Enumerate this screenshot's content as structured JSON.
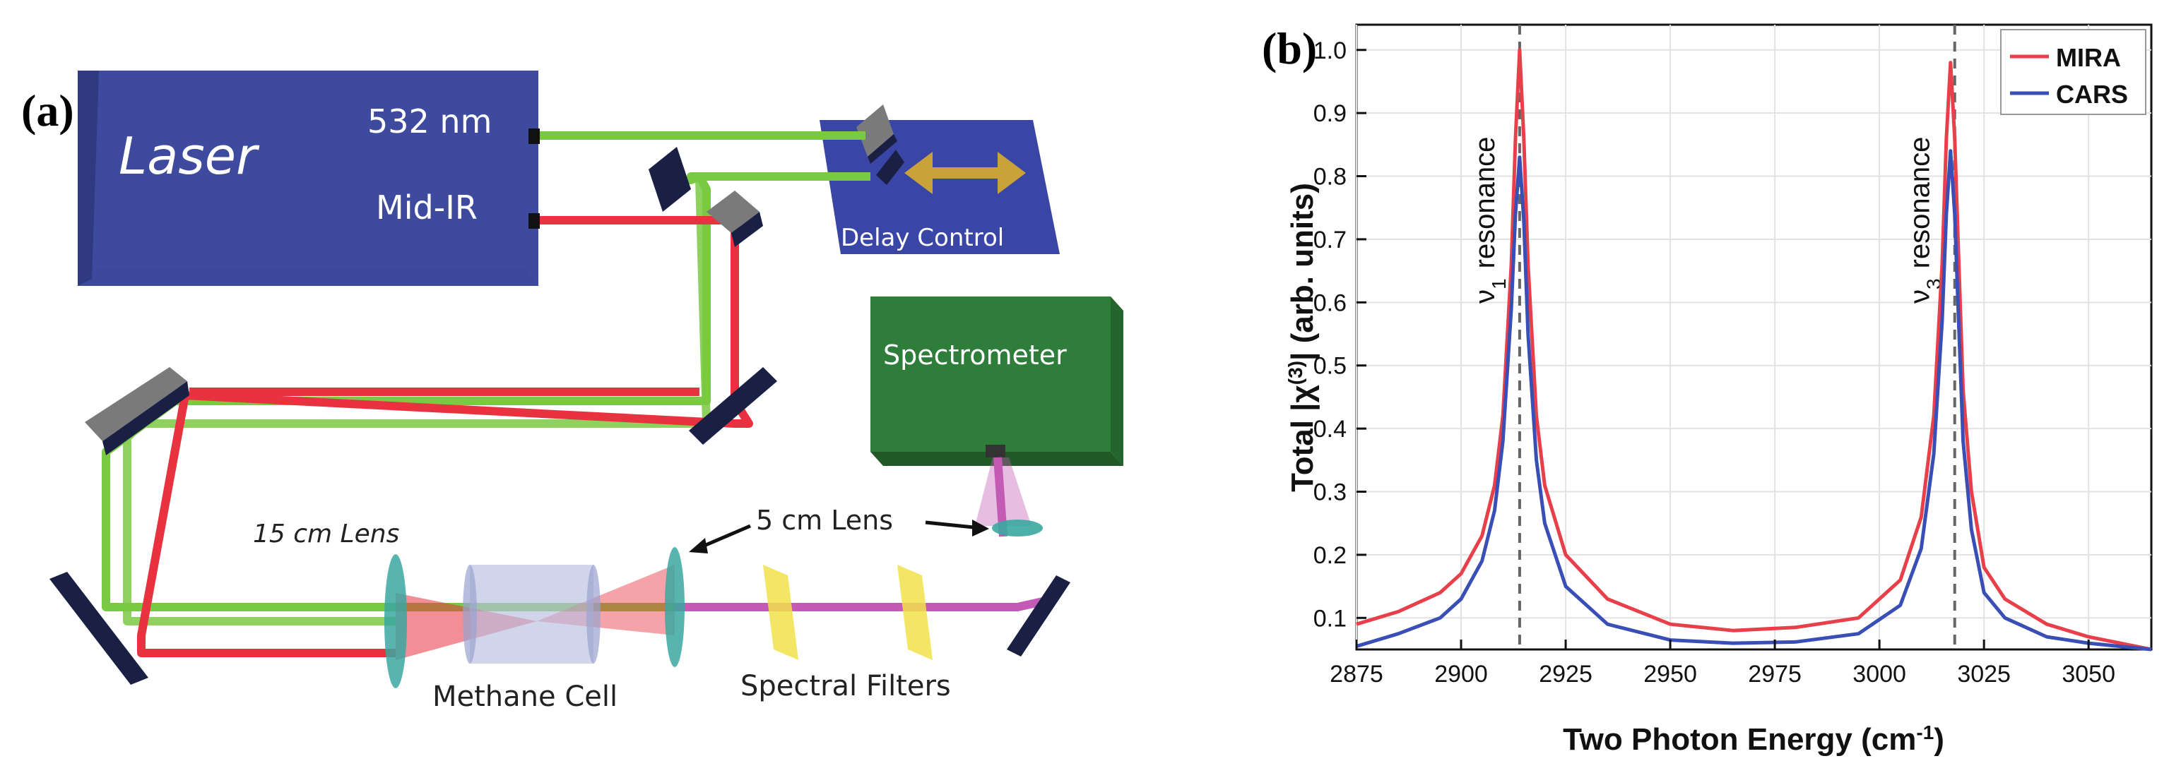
{
  "figure": {
    "panel_a_label": "(a)",
    "panel_b_label": "(b)"
  },
  "diagram": {
    "laser_label": "Laser",
    "laser_port_532": "532 nm",
    "laser_port_midir": "Mid-IR",
    "delay_control_label": "Delay Control",
    "spectrometer_label": "Spectrometer",
    "lens_15cm_label": "15 cm Lens",
    "lens_5cm_label": "5 cm Lens",
    "methane_cell_label": "Methane Cell",
    "spectral_filters_label": "Spectral Filters",
    "colors": {
      "laser_box": "#3e4a9e",
      "delay_box": "#3a46a6",
      "spectrometer_box": "#2e7d3a",
      "green_beam": "#7ac943",
      "red_beam": "#e8323f",
      "purple_beam": "#c35ab5",
      "mirror": "#1a2044",
      "filter": "#f1e24a"
    }
  },
  "chart_data": {
    "type": "line",
    "title": "",
    "xlabel": "Two Photon Energy (cm-1)",
    "ylabel": "Total |χ(3)| (arb. units)",
    "xlim": [
      2875,
      3065
    ],
    "ylim": [
      0.05,
      1.04
    ],
    "x_ticks": [
      2875,
      2900,
      2925,
      2950,
      2975,
      3000,
      3025,
      3050
    ],
    "y_ticks": [
      0.1,
      0.2,
      0.3,
      0.4,
      0.5,
      0.6,
      0.7,
      0.8,
      0.9,
      1.0
    ],
    "grid": true,
    "legend_position": "top-right",
    "annotations": [
      {
        "text": "resonance",
        "subscript": "1",
        "symbol": "ν",
        "x": 2914
      },
      {
        "text": "resonance",
        "subscript": "3",
        "symbol": "ν",
        "x": 3018
      }
    ],
    "series": [
      {
        "name": "MIRA",
        "color": "#e8404a",
        "x": [
          2875,
          2885,
          2895,
          2900,
          2905,
          2908,
          2910,
          2912,
          2913,
          2914,
          2915,
          2916,
          2918,
          2920,
          2925,
          2935,
          2950,
          2965,
          2980,
          2995,
          3005,
          3010,
          3013,
          3015,
          3016,
          3017,
          3018,
          3019,
          3020,
          3022,
          3025,
          3030,
          3040,
          3050,
          3065
        ],
        "values": [
          0.09,
          0.11,
          0.14,
          0.17,
          0.23,
          0.31,
          0.42,
          0.66,
          0.86,
          1.0,
          0.86,
          0.66,
          0.42,
          0.31,
          0.2,
          0.13,
          0.09,
          0.08,
          0.085,
          0.1,
          0.16,
          0.26,
          0.42,
          0.66,
          0.86,
          0.98,
          0.86,
          0.66,
          0.46,
          0.3,
          0.18,
          0.13,
          0.09,
          0.07,
          0.05
        ]
      },
      {
        "name": "CARS",
        "color": "#3a4fb5",
        "x": [
          2875,
          2885,
          2895,
          2900,
          2905,
          2908,
          2910,
          2912,
          2913,
          2914,
          2915,
          2916,
          2918,
          2920,
          2925,
          2935,
          2950,
          2965,
          2980,
          2995,
          3005,
          3010,
          3013,
          3015,
          3016,
          3017,
          3018,
          3019,
          3020,
          3022,
          3025,
          3030,
          3040,
          3050,
          3065
        ],
        "values": [
          0.055,
          0.075,
          0.1,
          0.13,
          0.19,
          0.27,
          0.38,
          0.59,
          0.74,
          0.83,
          0.73,
          0.55,
          0.35,
          0.25,
          0.15,
          0.09,
          0.065,
          0.06,
          0.062,
          0.075,
          0.12,
          0.21,
          0.36,
          0.57,
          0.74,
          0.84,
          0.74,
          0.56,
          0.38,
          0.24,
          0.14,
          0.1,
          0.07,
          0.06,
          0.05
        ]
      }
    ]
  }
}
